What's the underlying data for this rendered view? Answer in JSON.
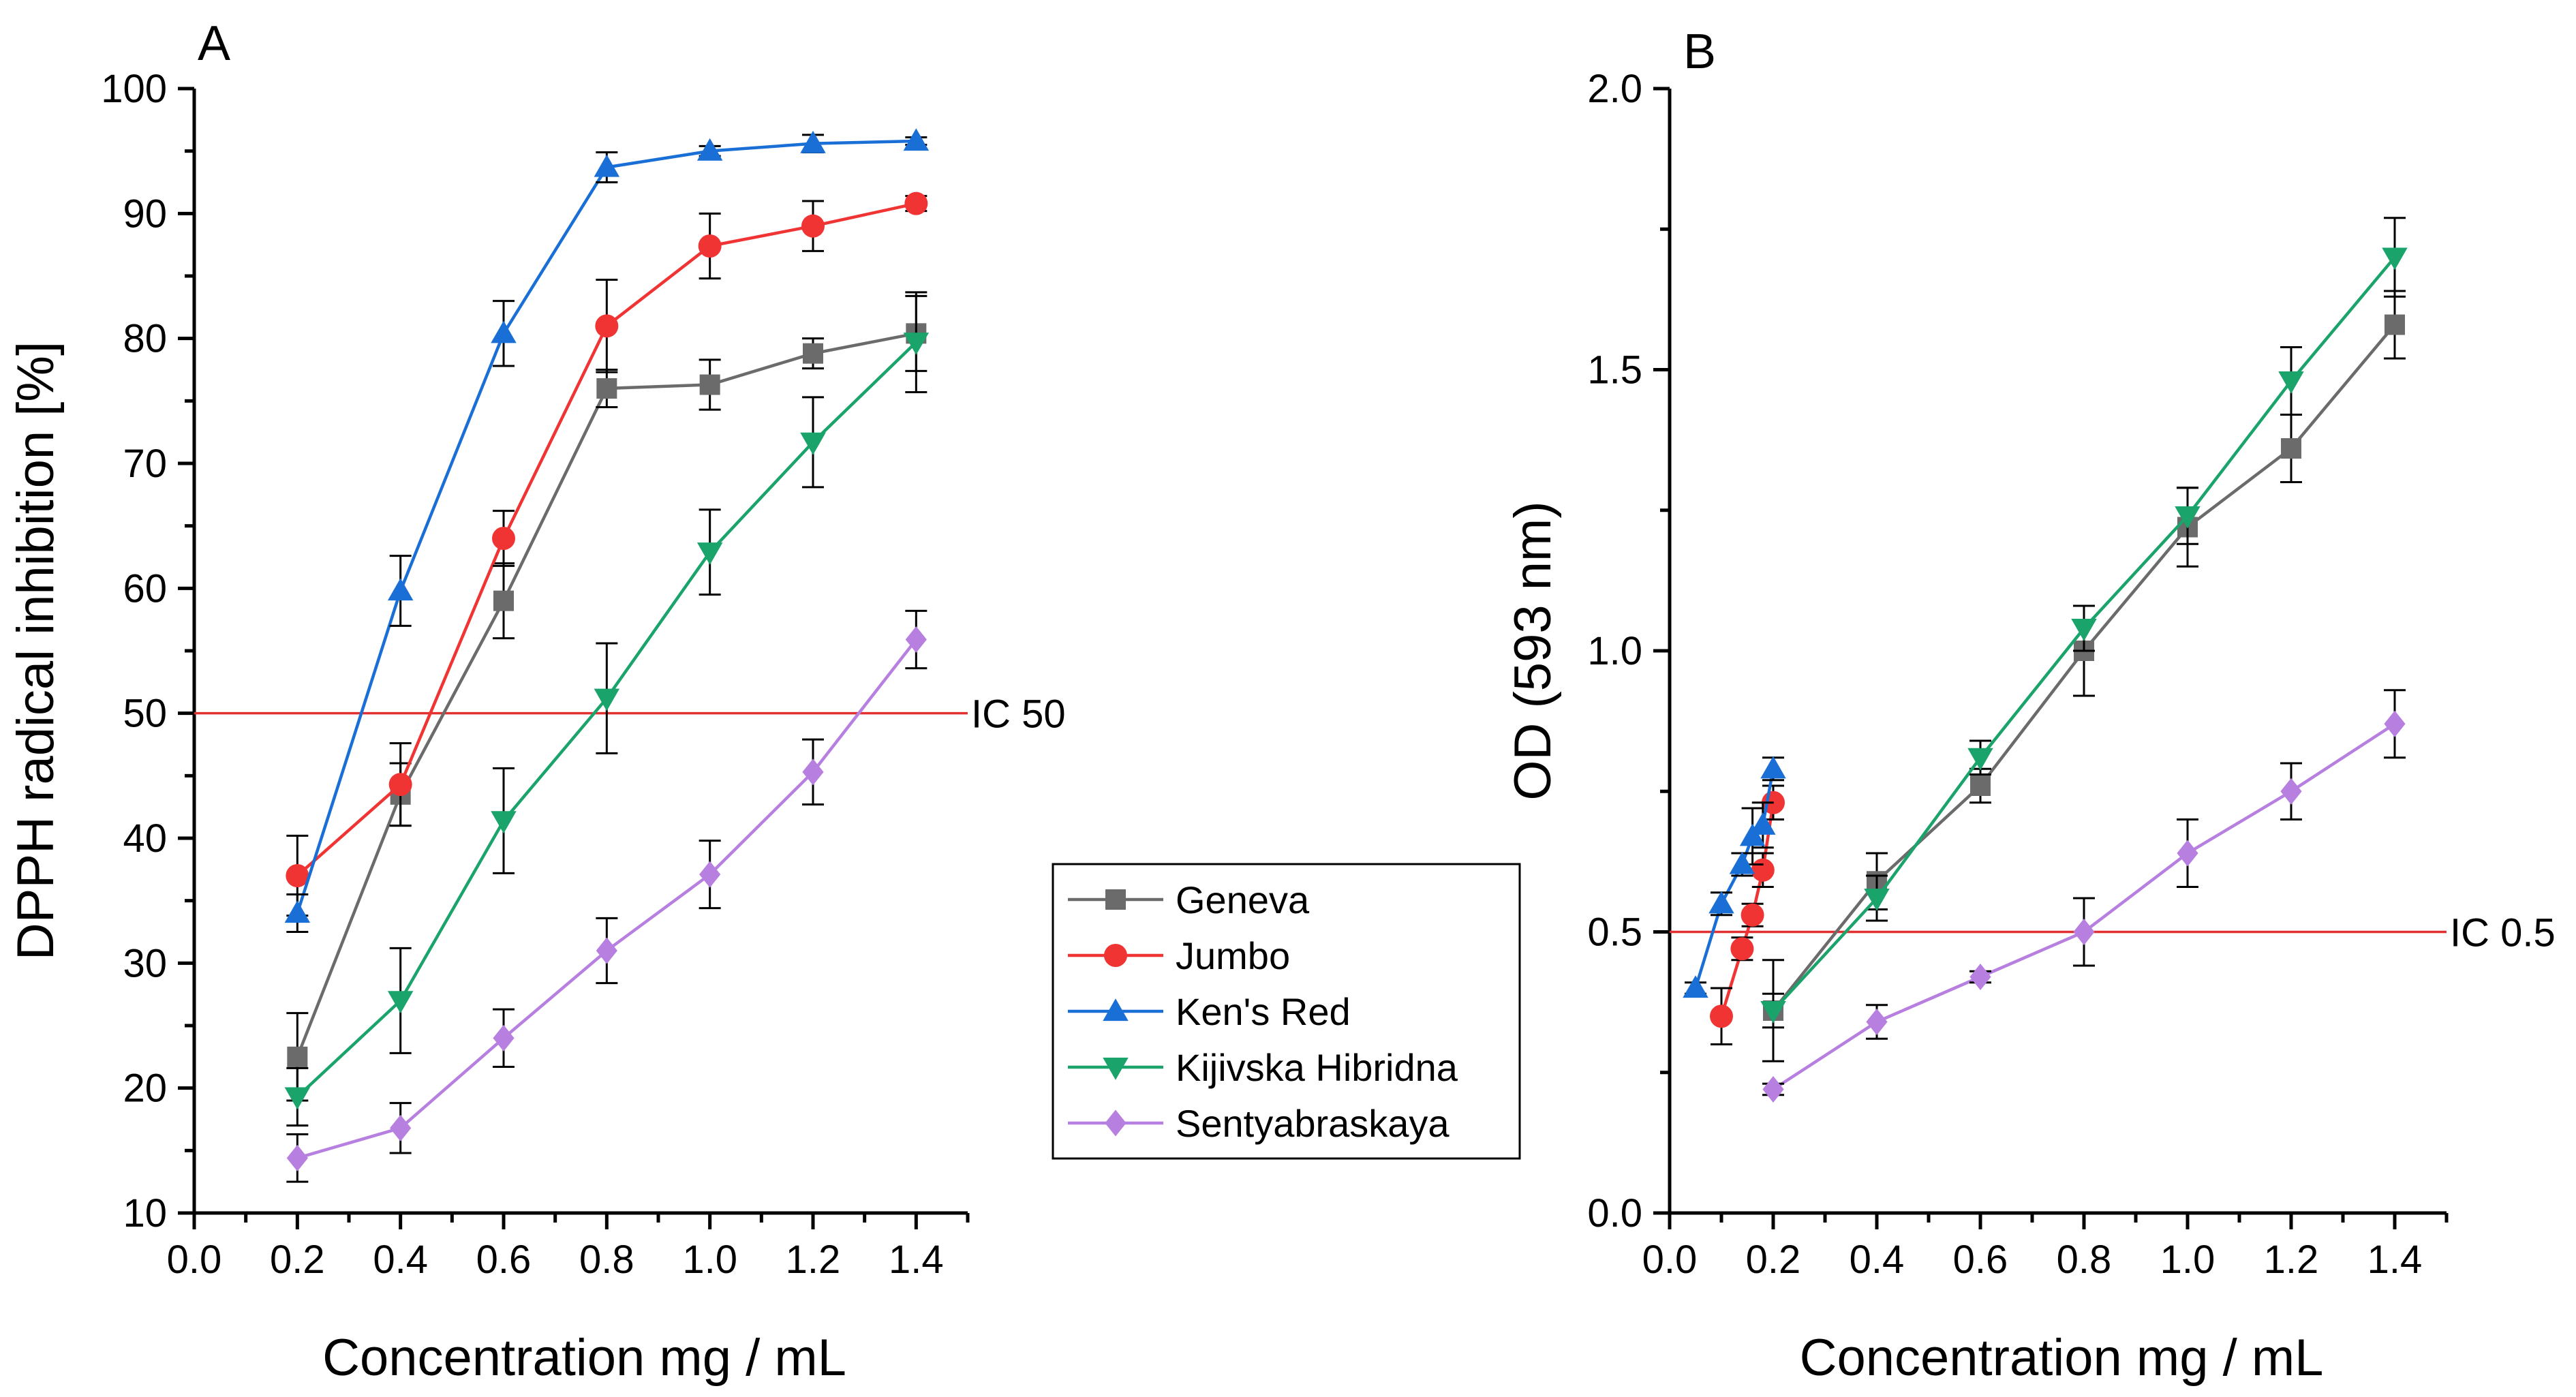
{
  "colors": {
    "Geneva": "#6b6b6b",
    "Jumbo": "#f03434",
    "Ken's Red": "#1a6fd6",
    "Kijivska Hibridna": "#1aa36a",
    "Sentyabraskaya": "#b67fe0",
    "reference_line": "#e03030"
  },
  "legend": {
    "entries": [
      "Geneva",
      "Jumbo",
      "Ken's Red",
      "Kijivska Hibridna",
      "Sentyabraskaya"
    ]
  },
  "chart_data": [
    {
      "type": "line",
      "panel_label": "A",
      "title": "",
      "xlabel": "Concentration mg / mL",
      "ylabel": "DPPH radical inhibition [%]",
      "xlim": [
        0.0,
        1.5
      ],
      "ylim": [
        10,
        100
      ],
      "xticks": [
        "0.0",
        "0.2",
        "0.4",
        "0.6",
        "0.8",
        "1.0",
        "1.2",
        "1.4"
      ],
      "yticks": [
        "10",
        "20",
        "30",
        "40",
        "50",
        "60",
        "70",
        "80",
        "90",
        "100"
      ],
      "grid": false,
      "reference_line": {
        "value": 50,
        "label": "IC 50"
      },
      "series": [
        {
          "name": "Geneva",
          "marker": "square",
          "x": [
            0.2,
            0.4,
            0.6,
            0.8,
            1.0,
            1.2,
            1.4
          ],
          "y": [
            22.5,
            43.5,
            59.0,
            76.0,
            76.3,
            78.8,
            80.4
          ],
          "err": [
            3.5,
            2.5,
            3.0,
            1.5,
            2.0,
            1.2,
            3.0
          ]
        },
        {
          "name": "Jumbo",
          "marker": "circle",
          "x": [
            0.2,
            0.4,
            0.6,
            0.8,
            1.0,
            1.2,
            1.4
          ],
          "y": [
            37.0,
            44.3,
            64.0,
            81.0,
            87.4,
            89.0,
            90.8
          ],
          "err": [
            3.2,
            3.3,
            2.2,
            3.7,
            2.6,
            2.0,
            0.6
          ]
        },
        {
          "name": "Ken's Red",
          "marker": "triangle-up",
          "x": [
            0.2,
            0.4,
            0.6,
            0.8,
            1.0,
            1.2,
            1.4
          ],
          "y": [
            34.0,
            59.8,
            80.4,
            93.7,
            95.0,
            95.6,
            95.8
          ],
          "err": [
            1.5,
            2.8,
            2.6,
            1.2,
            0.4,
            0.7,
            0.3
          ]
        },
        {
          "name": "Kijivska Hibridna",
          "marker": "triangle-down",
          "x": [
            0.2,
            0.4,
            0.6,
            0.8,
            1.0,
            1.2,
            1.4
          ],
          "y": [
            19.3,
            27.0,
            41.4,
            51.2,
            62.9,
            71.7,
            79.7
          ],
          "err": [
            2.3,
            4.2,
            4.2,
            4.4,
            3.4,
            3.6,
            4.0
          ]
        },
        {
          "name": "Sentyabraskaya",
          "marker": "diamond",
          "x": [
            0.2,
            0.4,
            0.6,
            0.8,
            1.0,
            1.2,
            1.4
          ],
          "y": [
            14.4,
            16.8,
            24.0,
            31.0,
            37.1,
            45.3,
            55.9
          ],
          "err": [
            1.9,
            2.0,
            2.3,
            2.6,
            2.7,
            2.6,
            2.3
          ]
        }
      ]
    },
    {
      "type": "line",
      "panel_label": "B",
      "title": "",
      "xlabel": "Concentration mg / mL",
      "ylabel": "OD (593 nm)",
      "xlim": [
        0.0,
        1.5
      ],
      "ylim": [
        0.0,
        2.0
      ],
      "xticks": [
        "0.0",
        "0.2",
        "0.4",
        "0.6",
        "0.8",
        "1.0",
        "1.2",
        "1.4"
      ],
      "yticks": [
        "0.0",
        "0.5",
        "1.0",
        "1.5",
        "2.0"
      ],
      "grid": false,
      "reference_line": {
        "value": 0.5,
        "label": "IC 0.5"
      },
      "series": [
        {
          "name": "Geneva",
          "marker": "square",
          "x": [
            0.2,
            0.4,
            0.6,
            0.8,
            1.0,
            1.2,
            1.4
          ],
          "y": [
            0.36,
            0.59,
            0.76,
            1.0,
            1.22,
            1.36,
            1.58
          ],
          "err": [
            0.09,
            0.05,
            0.03,
            0.08,
            0.07,
            0.06,
            0.06
          ]
        },
        {
          "name": "Jumbo",
          "marker": "circle",
          "x": [
            0.1,
            0.14,
            0.16,
            0.18,
            0.2
          ],
          "y": [
            0.35,
            0.47,
            0.53,
            0.61,
            0.73
          ],
          "err": [
            0.05,
            0.02,
            0.02,
            0.03,
            0.03
          ]
        },
        {
          "name": "Ken's Red",
          "marker": "triangle-up",
          "x": [
            0.05,
            0.1,
            0.14,
            0.16,
            0.18,
            0.2
          ],
          "y": [
            0.4,
            0.55,
            0.62,
            0.67,
            0.69,
            0.79
          ],
          "err": [
            0.01,
            0.02,
            0.02,
            0.05,
            0.04,
            0.02
          ]
        },
        {
          "name": "Kijivska Hibridna",
          "marker": "triangle-down",
          "x": [
            0.2,
            0.4,
            0.6,
            0.8,
            1.0,
            1.2,
            1.4
          ],
          "y": [
            0.36,
            0.56,
            0.81,
            1.04,
            1.24,
            1.48,
            1.7
          ],
          "err": [
            0.03,
            0.04,
            0.03,
            0.04,
            0.05,
            0.06,
            0.07
          ]
        },
        {
          "name": "Sentyabraskaya",
          "marker": "diamond",
          "x": [
            0.2,
            0.4,
            0.6,
            0.8,
            1.0,
            1.2,
            1.4
          ],
          "y": [
            0.22,
            0.34,
            0.42,
            0.5,
            0.64,
            0.75,
            0.87
          ],
          "err": [
            0.01,
            0.03,
            0.01,
            0.06,
            0.06,
            0.05,
            0.06
          ]
        }
      ]
    }
  ]
}
